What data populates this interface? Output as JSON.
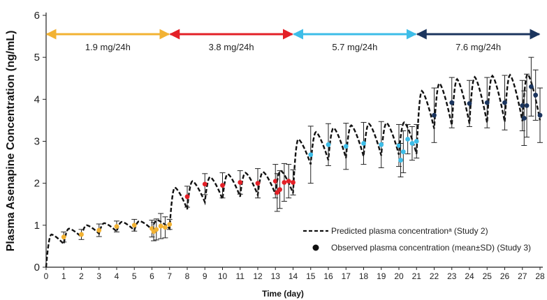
{
  "chart_data": {
    "type": "line",
    "xlabel": "Time (day)",
    "ylabel": "Plasma Asenapine Concentration (ng/mL)",
    "xlim": [
      0,
      28
    ],
    "ylim": [
      0,
      6
    ],
    "x_ticks": [
      0,
      1,
      2,
      3,
      4,
      5,
      6,
      7,
      8,
      9,
      10,
      11,
      12,
      13,
      14,
      15,
      16,
      17,
      18,
      19,
      20,
      21,
      22,
      23,
      24,
      25,
      26,
      27,
      28
    ],
    "y_ticks": [
      0,
      1,
      2,
      3,
      4,
      5,
      6
    ],
    "grid": false,
    "legend_position": "bottom-right",
    "dose_periods": [
      {
        "label": "1.9 mg/24h",
        "start": 0,
        "end": 7,
        "color": "#f2b233"
      },
      {
        "label": "3.8 mg/24h",
        "start": 7,
        "end": 14,
        "color": "#e32027"
      },
      {
        "label": "5.7 mg/24h",
        "start": 14,
        "end": 21,
        "color": "#3dbde8"
      },
      {
        "label": "7.6 mg/24h",
        "start": 21,
        "end": 28,
        "color": "#1b355e"
      }
    ],
    "predicted": {
      "name": "Predicted plasma concentrationᵃ (Study 2)",
      "peaks": [
        0.78,
        0.92,
        1.0,
        1.05,
        1.08,
        1.1,
        1.12,
        1.9,
        2.05,
        2.15,
        2.22,
        2.25,
        2.27,
        2.3,
        3.05,
        3.22,
        3.32,
        3.38,
        3.42,
        3.44,
        3.45,
        4.2,
        4.38,
        4.48,
        4.53,
        4.56,
        4.58,
        4.6
      ],
      "troughs": [
        0.55,
        0.72,
        0.8,
        0.85,
        0.88,
        0.9,
        0.92,
        1.38,
        1.55,
        1.62,
        1.68,
        1.72,
        1.74,
        1.76,
        2.45,
        2.55,
        2.6,
        2.64,
        2.66,
        2.68,
        2.7,
        3.3,
        3.38,
        3.42,
        3.44,
        3.46,
        3.48,
        3.5
      ]
    },
    "observed": {
      "name": "Observed plasma concentration (mean±SD) (Study 3)",
      "points": [
        {
          "x": 1,
          "y": 0.72,
          "sd": 0.12,
          "color": "#f2b233"
        },
        {
          "x": 2,
          "y": 0.78,
          "sd": 0.12,
          "color": "#f2b233"
        },
        {
          "x": 3,
          "y": 0.88,
          "sd": 0.15,
          "color": "#f2b233"
        },
        {
          "x": 4,
          "y": 0.97,
          "sd": 0.13,
          "color": "#f2b233"
        },
        {
          "x": 5,
          "y": 1.0,
          "sd": 0.14,
          "color": "#f2b233"
        },
        {
          "x": 6,
          "y": 0.92,
          "sd": 0.2,
          "color": "#f2b233"
        },
        {
          "x": 6.1,
          "y": 0.85,
          "sd": 0.22,
          "color": "#f2b233"
        },
        {
          "x": 6.25,
          "y": 0.9,
          "sd": 0.25,
          "color": "#f2b233"
        },
        {
          "x": 6.5,
          "y": 0.98,
          "sd": 0.3,
          "color": "#f2b233"
        },
        {
          "x": 6.75,
          "y": 0.95,
          "sd": 0.25,
          "color": "#f2b233"
        },
        {
          "x": 7,
          "y": 1.02,
          "sd": 0.12,
          "color": "#f2b233"
        },
        {
          "x": 8,
          "y": 1.68,
          "sd": 0.25,
          "color": "#e32027"
        },
        {
          "x": 9,
          "y": 1.98,
          "sd": 0.25,
          "color": "#e32027"
        },
        {
          "x": 10,
          "y": 1.95,
          "sd": 0.3,
          "color": "#e32027"
        },
        {
          "x": 11,
          "y": 2.02,
          "sd": 0.28,
          "color": "#e32027"
        },
        {
          "x": 12,
          "y": 2.0,
          "sd": 0.35,
          "color": "#e32027"
        },
        {
          "x": 13,
          "y": 2.05,
          "sd": 0.4,
          "color": "#e32027"
        },
        {
          "x": 13.1,
          "y": 1.78,
          "sd": 0.45,
          "color": "#e32027"
        },
        {
          "x": 13.25,
          "y": 1.85,
          "sd": 0.45,
          "color": "#e32027"
        },
        {
          "x": 13.5,
          "y": 2.02,
          "sd": 0.45,
          "color": "#e32027"
        },
        {
          "x": 13.75,
          "y": 2.05,
          "sd": 0.4,
          "color": "#e32027"
        },
        {
          "x": 14,
          "y": 2.02,
          "sd": 0.3,
          "color": "#e32027"
        },
        {
          "x": 15,
          "y": 2.68,
          "sd": 0.68,
          "color": "#3dbde8"
        },
        {
          "x": 16,
          "y": 2.92,
          "sd": 0.5,
          "color": "#3dbde8"
        },
        {
          "x": 17,
          "y": 2.88,
          "sd": 0.55,
          "color": "#3dbde8"
        },
        {
          "x": 18,
          "y": 2.95,
          "sd": 0.5,
          "color": "#3dbde8"
        },
        {
          "x": 19,
          "y": 2.92,
          "sd": 0.55,
          "color": "#3dbde8"
        },
        {
          "x": 20,
          "y": 2.9,
          "sd": 0.5,
          "color": "#3dbde8"
        },
        {
          "x": 20.1,
          "y": 2.55,
          "sd": 0.4,
          "color": "#3dbde8"
        },
        {
          "x": 20.25,
          "y": 2.75,
          "sd": 0.5,
          "color": "#3dbde8"
        },
        {
          "x": 20.5,
          "y": 3.05,
          "sd": 0.35,
          "color": "#3dbde8"
        },
        {
          "x": 20.75,
          "y": 2.95,
          "sd": 0.4,
          "color": "#3dbde8"
        },
        {
          "x": 21,
          "y": 3.0,
          "sd": 0.4,
          "color": "#3dbde8"
        },
        {
          "x": 22,
          "y": 3.62,
          "sd": 0.65,
          "color": "#1b355e"
        },
        {
          "x": 23,
          "y": 3.92,
          "sd": 0.6,
          "color": "#1b355e"
        },
        {
          "x": 24,
          "y": 3.9,
          "sd": 0.55,
          "color": "#1b355e"
        },
        {
          "x": 25,
          "y": 3.92,
          "sd": 0.6,
          "color": "#1b355e"
        },
        {
          "x": 26,
          "y": 3.92,
          "sd": 0.65,
          "color": "#1b355e"
        },
        {
          "x": 27,
          "y": 3.85,
          "sd": 0.6,
          "color": "#1b355e"
        },
        {
          "x": 27.1,
          "y": 3.55,
          "sd": 0.65,
          "color": "#1b355e"
        },
        {
          "x": 27.25,
          "y": 3.85,
          "sd": 0.75,
          "color": "#1b355e"
        },
        {
          "x": 27.5,
          "y": 4.3,
          "sd": 0.7,
          "color": "#1b355e"
        },
        {
          "x": 27.75,
          "y": 4.1,
          "sd": 0.6,
          "color": "#1b355e"
        },
        {
          "x": 28,
          "y": 3.62,
          "sd": 0.65,
          "color": "#1b355e"
        }
      ]
    }
  }
}
